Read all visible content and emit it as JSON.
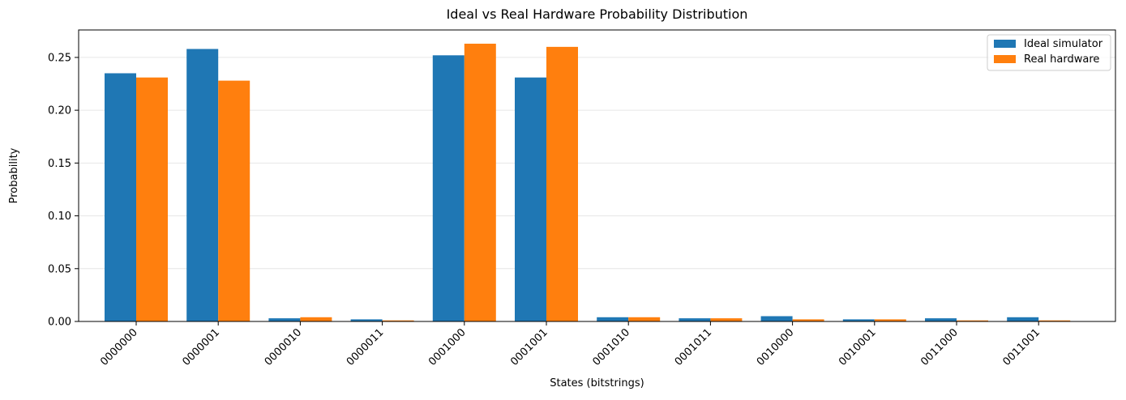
{
  "chart_data": {
    "type": "bar",
    "title": "Ideal vs Real Hardware Probability Distribution",
    "xlabel": "States (bitstrings)",
    "ylabel": "Probability",
    "ylim": [
      0,
      0.276
    ],
    "yticks": [
      0.0,
      0.05,
      0.1,
      0.15,
      0.2,
      0.25
    ],
    "ytick_labels": [
      "0.00",
      "0.05",
      "0.10",
      "0.15",
      "0.20",
      "0.25"
    ],
    "grid": "y",
    "legend": "top-right",
    "categories": [
      "0000000",
      "0000001",
      "0000010",
      "0000011",
      "0001000",
      "0001001",
      "0001010",
      "0001011",
      "0010000",
      "0010001",
      "0011000",
      "0011001"
    ],
    "series": [
      {
        "name": "Ideal simulator",
        "color": "#1f77b4",
        "values": [
          0.235,
          0.258,
          0.003,
          0.002,
          0.252,
          0.231,
          0.004,
          0.003,
          0.005,
          0.002,
          0.003,
          0.004
        ]
      },
      {
        "name": "Real hardware",
        "color": "#ff7f0e",
        "values": [
          0.231,
          0.228,
          0.004,
          0.001,
          0.263,
          0.26,
          0.004,
          0.003,
          0.002,
          0.002,
          0.001,
          0.001
        ]
      }
    ]
  }
}
